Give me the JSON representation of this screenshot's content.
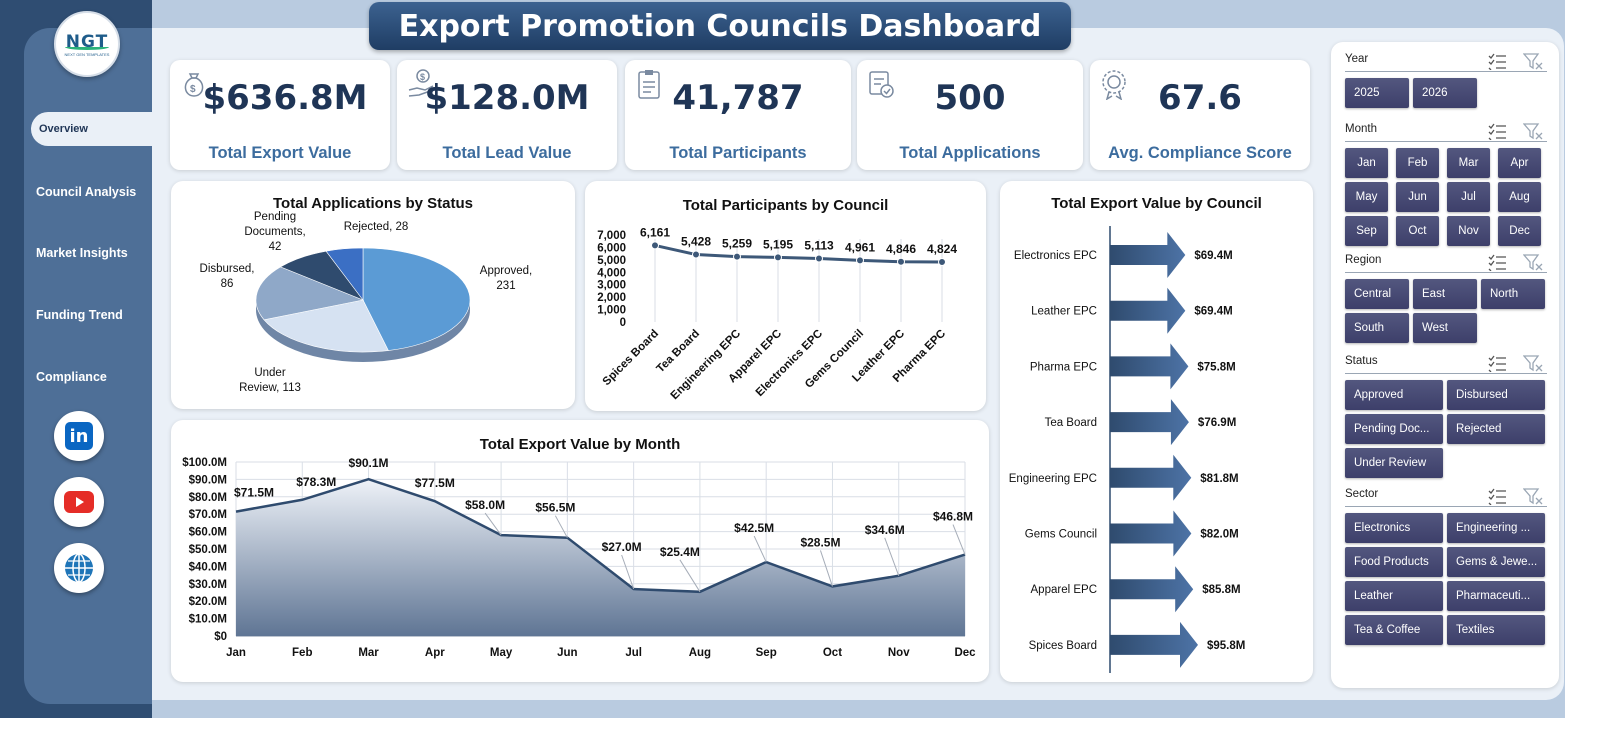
{
  "title": "Export Promotion Councils Dashboard",
  "logo": {
    "text": "NGT",
    "subtext": "NEXT GEN TEMPLATES"
  },
  "nav": {
    "items": [
      {
        "label": "Overview",
        "active": true
      },
      {
        "label": "Council Analysis"
      },
      {
        "label": "Market Insights"
      },
      {
        "label": "Funding Trend"
      },
      {
        "label": "Compliance"
      }
    ]
  },
  "social": [
    {
      "icon": "linkedin-icon",
      "text": "in",
      "color": "#0a66c2"
    },
    {
      "icon": "youtube-icon",
      "color": "#e52d27"
    },
    {
      "icon": "globe-icon",
      "color": "#1f75b8"
    }
  ],
  "kpis": [
    {
      "icon": "money-bag-icon",
      "value": "$636.8M",
      "label": "Total Export Value"
    },
    {
      "icon": "hand-money-icon",
      "value": "$128.0M",
      "label": "Total Lead Value"
    },
    {
      "icon": "clipboard-icon",
      "value": "41,787",
      "label": "Total Participants"
    },
    {
      "icon": "application-icon",
      "value": "500",
      "label": "Total Applications"
    },
    {
      "icon": "compliance-badge-icon",
      "value": "67.6",
      "label": "Avg. Compliance Score"
    }
  ],
  "chart_data": [
    {
      "type": "pie",
      "title": "Total Applications by Status",
      "slices": [
        {
          "label": "Approved",
          "value": 231,
          "color": "#5b9bd5"
        },
        {
          "label": "Under Review",
          "value": 113,
          "color": "#d6e2f2"
        },
        {
          "label": "Disbursed",
          "value": 86,
          "color": "#8fa8c8"
        },
        {
          "label": "Pending Documents",
          "value": 42,
          "color": "#2f4b6e"
        },
        {
          "label": "Rejected",
          "value": 28,
          "color": "#3b6fc4"
        }
      ],
      "data_labels": [
        {
          "lines": [
            "Approved,",
            "231"
          ]
        },
        {
          "lines": [
            "Under",
            "Review, 113"
          ]
        },
        {
          "lines": [
            "Disbursed,",
            "86"
          ]
        },
        {
          "lines": [
            "Pending",
            "Documents,",
            "42"
          ]
        },
        {
          "lines": [
            "Rejected, 28"
          ]
        }
      ]
    },
    {
      "type": "line",
      "title": "Total Participants by Council",
      "categories": [
        "Spices Board",
        "Tea Board",
        "Engineering EPC",
        "Apparel EPC",
        "Electronics EPC",
        "Gems Council",
        "Leather EPC",
        "Pharma EPC"
      ],
      "values": [
        6161,
        5428,
        5259,
        5195,
        5113,
        4961,
        4846,
        4824
      ],
      "value_labels": [
        "6,161",
        "5,428",
        "5,259",
        "5,195",
        "5,113",
        "4,961",
        "4,846",
        "4,824"
      ],
      "ylim": [
        0,
        7000
      ],
      "y_ticks": [
        "0",
        "1,000",
        "2,000",
        "3,000",
        "4,000",
        "5,000",
        "6,000",
        "7,000"
      ]
    },
    {
      "type": "bar",
      "orientation": "horizontal",
      "title": "Total Export Value by Council",
      "categories": [
        "Electronics EPC",
        "Leather EPC",
        "Pharma EPC",
        "Tea Board",
        "Engineering EPC",
        "Gems Council",
        "Apparel EPC",
        "Spices Board"
      ],
      "values": [
        69.4,
        69.4,
        75.8,
        76.9,
        81.8,
        82.0,
        85.8,
        95.8
      ],
      "value_labels": [
        "$69.4M",
        "$69.4M",
        "$75.8M",
        "$76.9M",
        "$81.8M",
        "$82.0M",
        "$85.8M",
        "$95.8M"
      ],
      "unit": "$M"
    },
    {
      "type": "area",
      "title": "Total Export Value by Month",
      "categories": [
        "Jan",
        "Feb",
        "Mar",
        "Apr",
        "May",
        "Jun",
        "Jul",
        "Aug",
        "Sep",
        "Oct",
        "Nov",
        "Dec"
      ],
      "values": [
        71.5,
        78.3,
        90.1,
        77.5,
        58.0,
        56.5,
        27.0,
        25.4,
        42.5,
        28.5,
        34.6,
        46.8
      ],
      "value_labels": [
        "$71.5M",
        "$78.3M",
        "$90.1M",
        "$77.5M",
        "$58.0M",
        "$56.5M",
        "$27.0M",
        "$25.4M",
        "$42.5M",
        "$28.5M",
        "$34.6M",
        "$46.8M"
      ],
      "ylim": [
        0,
        100
      ],
      "y_ticks": [
        "$0",
        "$10.0M",
        "$20.0M",
        "$30.0M",
        "$40.0M",
        "$50.0M",
        "$60.0M",
        "$70.0M",
        "$80.0M",
        "$90.0M",
        "$100.0M"
      ],
      "grid": true
    }
  ],
  "filters": [
    {
      "label": "Year",
      "buttons": [
        "2025",
        "2026"
      ]
    },
    {
      "label": "Month",
      "buttons": [
        "Jan",
        "Feb",
        "Mar",
        "Apr",
        "May",
        "Jun",
        "Jul",
        "Aug",
        "Sep",
        "Oct",
        "Nov",
        "Dec"
      ]
    },
    {
      "label": "Region",
      "buttons": [
        "Central",
        "East",
        "North",
        "South",
        "West"
      ]
    },
    {
      "label": "Status",
      "buttons": [
        "Approved",
        "Disbursed",
        "Pending Doc...",
        "Rejected",
        "Under Review"
      ]
    },
    {
      "label": "Sector",
      "buttons": [
        "Electronics",
        "Engineering ...",
        "Food Products",
        "Gems & Jewe...",
        "Leather",
        "Pharmaceuti...",
        "Tea & Coffee",
        "Textiles"
      ]
    }
  ]
}
